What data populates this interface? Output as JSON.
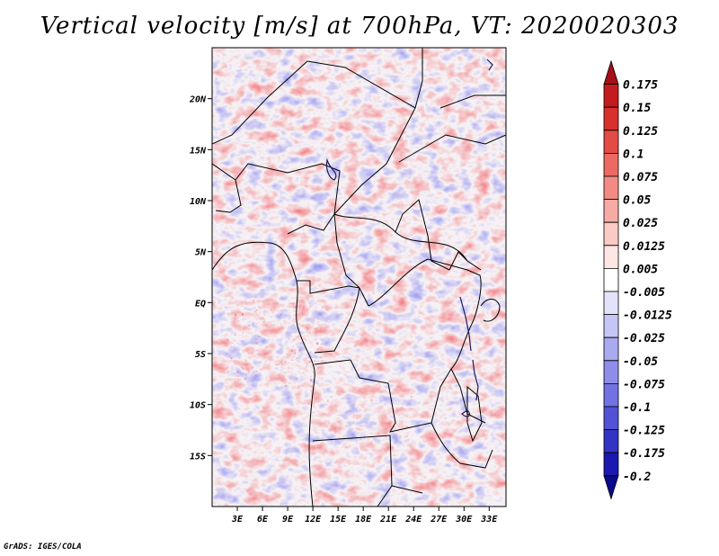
{
  "title": "Vertical velocity [m/s] at 700hPa, VT: 2020020303",
  "credit": "GrADS: IGES/COLA",
  "map": {
    "type": "field-map",
    "variable": "Vertical velocity",
    "units": "m/s",
    "level": "700hPa",
    "valid_time": "2020020303",
    "lon_range": [
      0,
      35
    ],
    "lat_range": [
      -20,
      25
    ],
    "lon_ticks": [
      {
        "value": 3,
        "label": "3E"
      },
      {
        "value": 6,
        "label": "6E"
      },
      {
        "value": 9,
        "label": "9E"
      },
      {
        "value": 12,
        "label": "12E"
      },
      {
        "value": 15,
        "label": "15E"
      },
      {
        "value": 18,
        "label": "18E"
      },
      {
        "value": 21,
        "label": "21E"
      },
      {
        "value": 24,
        "label": "24E"
      },
      {
        "value": 27,
        "label": "27E"
      },
      {
        "value": 30,
        "label": "30E"
      },
      {
        "value": 33,
        "label": "33E"
      }
    ],
    "lat_ticks": [
      {
        "value": 20,
        "label": "20N"
      },
      {
        "value": 15,
        "label": "15N"
      },
      {
        "value": 10,
        "label": "10N"
      },
      {
        "value": 5,
        "label": "5N"
      },
      {
        "value": 0,
        "label": "EQ"
      },
      {
        "value": -5,
        "label": "5S"
      },
      {
        "value": -10,
        "label": "10S"
      },
      {
        "value": -15,
        "label": "15S"
      }
    ]
  },
  "colorbar": {
    "boundaries": [
      "0.175",
      "0.15",
      "0.125",
      "0.1",
      "0.075",
      "0.05",
      "0.025",
      "0.0125",
      "0.005",
      "-0.005",
      "-0.0125",
      "-0.025",
      "-0.05",
      "-0.075",
      "-0.1",
      "-0.125",
      "-0.175",
      "-0.2"
    ],
    "colors": [
      "#a50f15",
      "#c41b1f",
      "#d8302c",
      "#e34b45",
      "#ec6a63",
      "#f38b84",
      "#f7aba4",
      "#fbcac5",
      "#fde6e3",
      "#ffffff",
      "#e2e2fb",
      "#c6c6f6",
      "#aaaaf1",
      "#8e8eea",
      "#7272e2",
      "#5252d6",
      "#3434c4",
      "#1a1ab0",
      "#0a0a8c"
    ]
  }
}
